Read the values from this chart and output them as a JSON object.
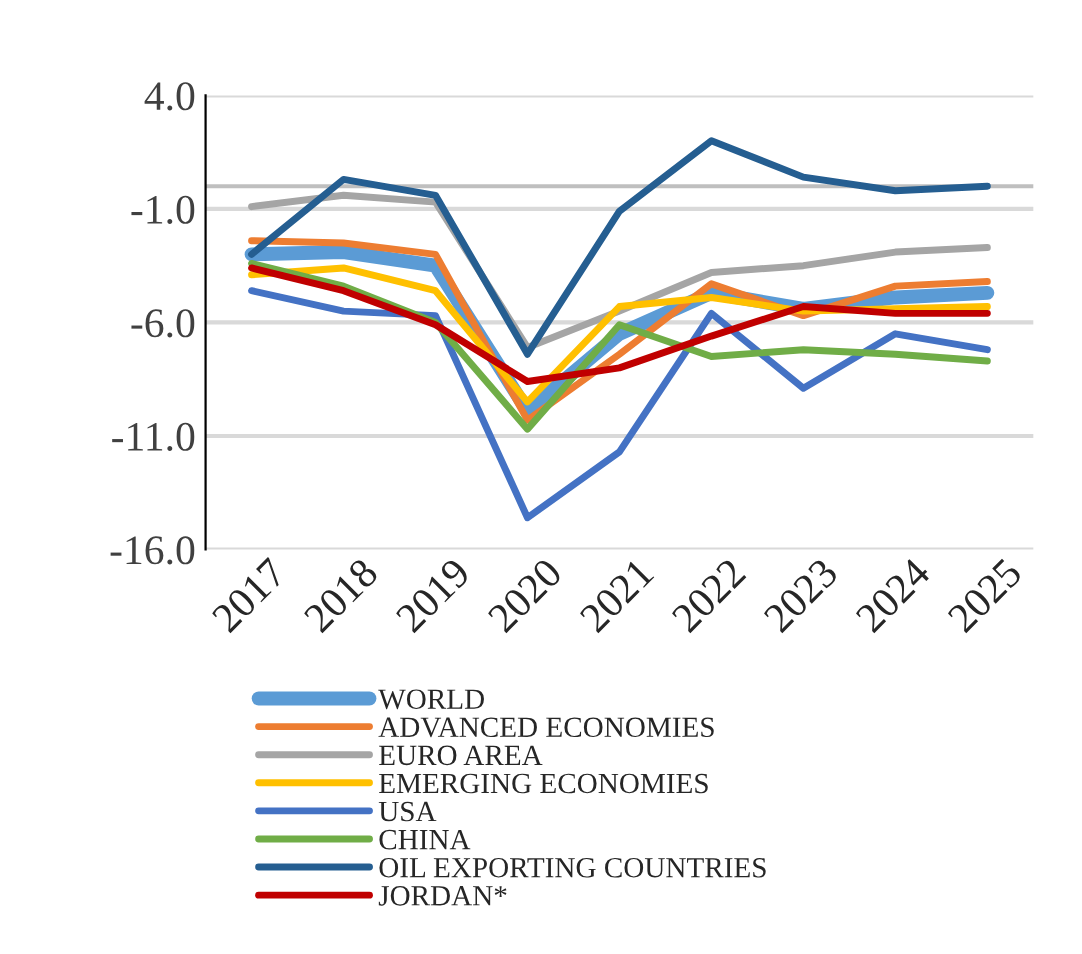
{
  "chart_data": {
    "type": "line",
    "categories": [
      "2017",
      "2018",
      "2019",
      "2020",
      "2021",
      "2022",
      "2023",
      "2024",
      "2025"
    ],
    "series": [
      {
        "name": "WORLD",
        "color": "#5b9bd5",
        "values": [
          -3.0,
          -2.9,
          -3.5,
          -9.9,
          -6.5,
          -4.7,
          -5.4,
          -4.9,
          -4.7
        ]
      },
      {
        "name": "ADVANCED ECONOMIES",
        "color": "#ed7d31",
        "values": [
          -2.4,
          -2.5,
          -3.0,
          -10.3,
          -7.4,
          -4.3,
          -5.7,
          -4.4,
          -4.2
        ]
      },
      {
        "name": "EURO AREA",
        "color": "#a5a5a5",
        "values": [
          -0.9,
          -0.4,
          -0.7,
          -7.1,
          -5.5,
          -3.8,
          -3.5,
          -2.9,
          -2.7
        ]
      },
      {
        "name": "EMERGING ECONOMIES",
        "color": "#ffc000",
        "values": [
          -3.9,
          -3.6,
          -4.6,
          -9.5,
          -5.3,
          -4.9,
          -5.5,
          -5.4,
          -5.3
        ]
      },
      {
        "name": "USA",
        "color": "#4472c4",
        "values": [
          -4.6,
          -5.5,
          -5.7,
          -14.6,
          -11.7,
          -5.6,
          -8.9,
          -6.5,
          -7.2
        ]
      },
      {
        "name": "CHINA",
        "color": "#70ad47",
        "values": [
          -3.4,
          -4.4,
          -6.0,
          -10.7,
          -6.1,
          -7.5,
          -7.2,
          -7.4,
          -7.7
        ]
      },
      {
        "name": "OIL EXPORTING COUNTRIES",
        "color": "#255e91",
        "values": [
          -3.0,
          0.3,
          -0.4,
          -7.4,
          -1.1,
          2.0,
          0.4,
          -0.2,
          0.0
        ]
      },
      {
        "name": "JORDAN*",
        "color": "#c00000",
        "values": [
          -3.6,
          -4.6,
          -6.1,
          -8.6,
          -8.0,
          -6.6,
          -5.3,
          -5.6,
          -5.6
        ]
      }
    ],
    "ylim": [
      -16,
      4
    ],
    "yticks": [
      {
        "value": 4,
        "label": "4.0"
      },
      {
        "value": -1,
        "label": "-1.0"
      },
      {
        "value": -6,
        "label": "-6.0"
      },
      {
        "value": -11,
        "label": "-11.0"
      },
      {
        "value": -16,
        "label": "-16.0"
      }
    ],
    "ref_lines": [
      {
        "axis": "y",
        "value": 0,
        "color": "#bfbfbf"
      }
    ],
    "grid": "y",
    "legend": "bottom",
    "marker": "none",
    "line_style": "solid"
  }
}
